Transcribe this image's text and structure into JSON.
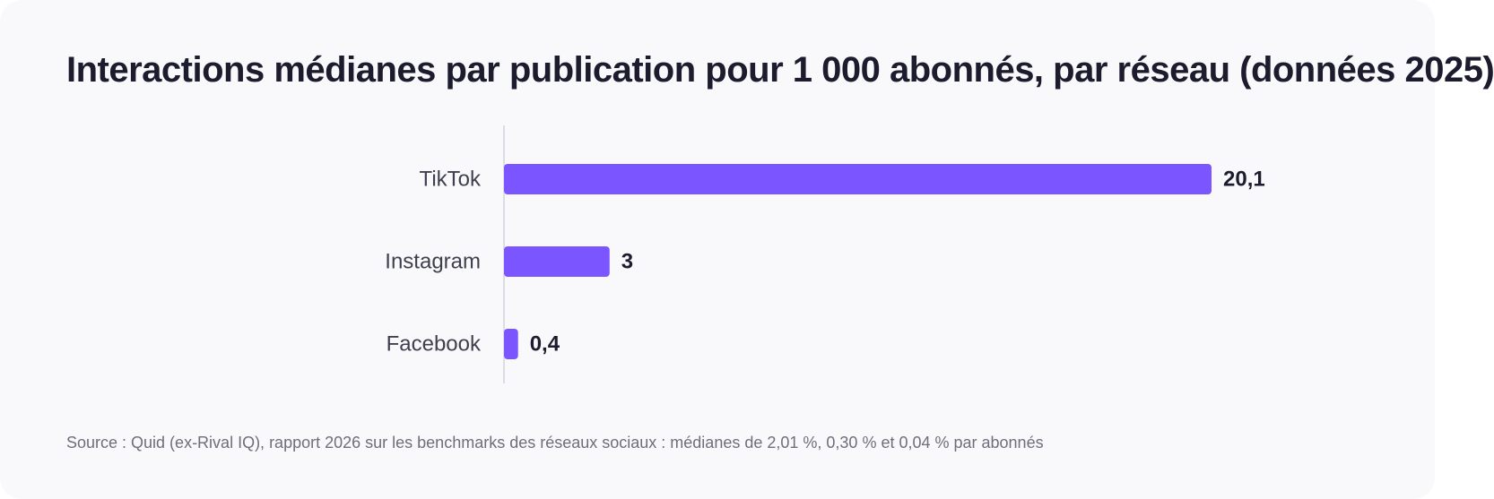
{
  "chart_data": {
    "type": "bar",
    "orientation": "horizontal",
    "title": "Interactions médianes par publication pour 1 000 abonnés, par réseau (données 2025)",
    "categories": [
      "TikTok",
      "Instagram",
      "Facebook"
    ],
    "values": [
      20.1,
      3,
      0.4
    ],
    "value_labels": [
      "20,1",
      "3",
      "0,4"
    ],
    "xlim": [
      0,
      20.1
    ],
    "grid": false,
    "legend": "none",
    "bar_color": "#7b55ff",
    "source": "Source : Quid (ex-Rival IQ), rapport 2026 sur les benchmarks des réseaux sociaux : médianes de 2,01 %, 0,30 % et 0,04 % par abonnés"
  }
}
